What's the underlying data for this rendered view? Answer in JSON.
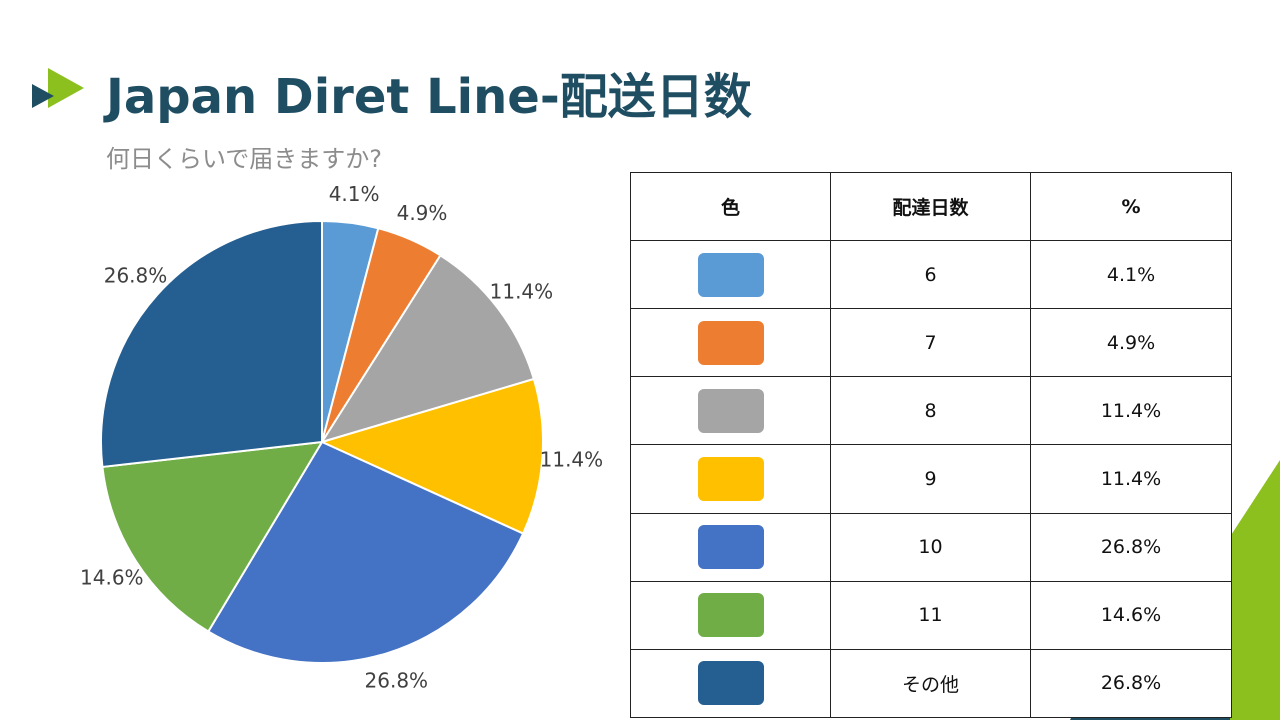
{
  "slide": {
    "title": "Japan Diret Line-配送日数",
    "subtitle": "何日くらいで届きますか?"
  },
  "icons": {
    "logo": "double-chevron-arrow-icon"
  },
  "colors": {
    "title": "#1f4e63",
    "logo_primary": "#8cc01f",
    "logo_secondary": "#1f4e63",
    "decor_green": "#8cc01f",
    "decor_navy": "#1f4e63"
  },
  "table": {
    "headers": [
      "色",
      "配達日数",
      "%"
    ],
    "rows": [
      {
        "color": "#5b9bd5",
        "days": "6",
        "percent": "4.1%"
      },
      {
        "color": "#ed7d31",
        "days": "7",
        "percent": "4.9%"
      },
      {
        "color": "#a5a5a5",
        "days": "8",
        "percent": "11.4%"
      },
      {
        "color": "#ffc000",
        "days": "9",
        "percent": "11.4%"
      },
      {
        "color": "#4472c4",
        "days": "10",
        "percent": "26.8%"
      },
      {
        "color": "#70ad47",
        "days": "11",
        "percent": "14.6%"
      },
      {
        "color": "#255e91",
        "days": "その他",
        "percent": "26.8%"
      }
    ]
  },
  "chart_data": {
    "type": "pie",
    "categories": [
      "6",
      "7",
      "8",
      "9",
      "10",
      "11",
      "その他"
    ],
    "values": [
      4.1,
      4.9,
      11.4,
      11.4,
      26.8,
      14.6,
      26.8
    ],
    "labels": [
      "4.1%",
      "4.9%",
      "11.4%",
      "11.4%",
      "26.8%",
      "14.6%",
      "26.8%"
    ],
    "colors": [
      "#5b9bd5",
      "#ed7d31",
      "#a5a5a5",
      "#ffc000",
      "#4472c4",
      "#70ad47",
      "#255e91"
    ],
    "start": "12 o'clock",
    "direction": "clockwise",
    "legend": "table-right"
  }
}
